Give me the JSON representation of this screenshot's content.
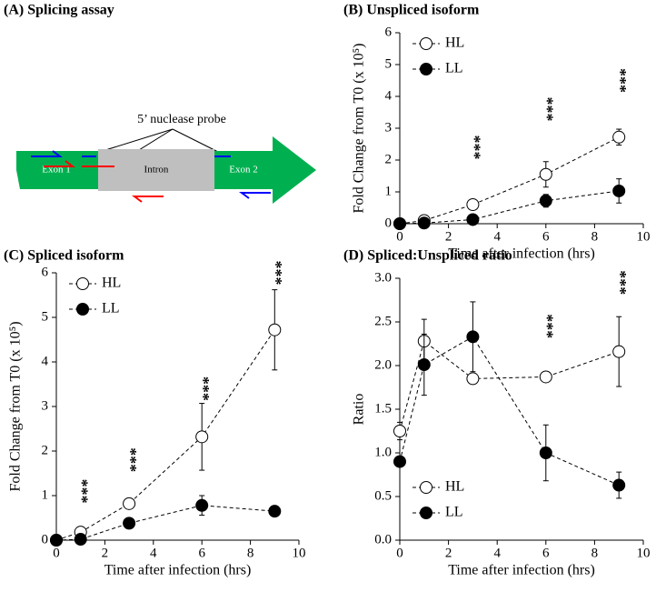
{
  "panel_a": {
    "title": "(A) Splicing assay",
    "probe_label": "5’ nuclease probe",
    "exon1": "Exon 1",
    "intron": "Intron",
    "exon2": "Exon 2"
  },
  "chart_data": [
    {
      "type": "line",
      "title": "(B) Unspliced isoform",
      "xlabel": "Time after infection (hrs)",
      "ylabel": "Fold Change from T0 (x 10⁵)",
      "x": [
        0,
        1,
        3,
        6,
        9
      ],
      "xlim": [
        0,
        10
      ],
      "xticks": [
        0,
        2,
        4,
        6,
        8,
        10
      ],
      "ylim": [
        0,
        6
      ],
      "yticks": [
        0,
        1,
        2,
        3,
        4,
        5,
        6
      ],
      "legend": "upper left",
      "series": [
        {
          "name": "HL",
          "color": "#ffffff",
          "values": [
            0,
            0.1,
            0.6,
            1.55,
            2.72
          ],
          "errors": [
            0.05,
            0.05,
            0.1,
            0.4,
            0.25
          ]
        },
        {
          "name": "LL",
          "color": "#000000",
          "values": [
            0,
            0.02,
            0.13,
            0.72,
            1.03
          ],
          "errors": [
            0,
            0,
            0.05,
            0.2,
            0.38
          ]
        }
      ],
      "annotations": [
        {
          "x": 3,
          "y": 2.4,
          "text": "***"
        },
        {
          "x": 6,
          "y": 3.6,
          "text": "***"
        },
        {
          "x": 9,
          "y": 4.5,
          "text": "***"
        }
      ]
    },
    {
      "type": "line",
      "title": "(C) Spliced isoform",
      "xlabel": "Time after infection (hrs)",
      "ylabel": "Fold Change from T0 (x 10⁵)",
      "x": [
        0,
        1,
        3,
        6,
        9
      ],
      "xlim": [
        0,
        10
      ],
      "xticks": [
        0,
        2,
        4,
        6,
        8,
        10
      ],
      "ylim": [
        0,
        6
      ],
      "yticks": [
        0,
        1,
        2,
        3,
        4,
        5,
        6
      ],
      "legend": "upper left",
      "series": [
        {
          "name": "HL",
          "color": "#ffffff",
          "values": [
            0,
            0.18,
            0.82,
            2.32,
            4.72
          ],
          "errors": [
            0.05,
            0.1,
            0.1,
            0.75,
            0.9
          ]
        },
        {
          "name": "LL",
          "color": "#000000",
          "values": [
            0,
            0.02,
            0.38,
            0.78,
            0.65
          ],
          "errors": [
            0,
            0,
            0.1,
            0.22,
            0.05
          ]
        }
      ],
      "annotations": [
        {
          "x": 1,
          "y": 1.1,
          "text": "***"
        },
        {
          "x": 3,
          "y": 1.8,
          "text": "***"
        },
        {
          "x": 6,
          "y": 3.4,
          "text": "***"
        },
        {
          "x": 9,
          "y": 6.0,
          "text": "***"
        }
      ]
    },
    {
      "type": "line",
      "title": "(D) Spliced:Unspliced ratio",
      "xlabel": "Time after infection (hrs)",
      "ylabel": "Ratio",
      "x": [
        0,
        1,
        3,
        6,
        9
      ],
      "xlim": [
        0,
        10
      ],
      "xticks": [
        0,
        2,
        4,
        6,
        8,
        10
      ],
      "ylim": [
        0,
        3
      ],
      "yticks": [
        {
          "value": 0,
          "label": "0.0"
        },
        {
          "value": 0.5,
          "label": "0.5"
        },
        {
          "value": 1,
          "label": "1.0"
        },
        {
          "value": 1.5,
          "label": "1.5"
        },
        {
          "value": 2,
          "label": "2.0"
        },
        {
          "value": 2.5,
          "label": "2.5"
        },
        {
          "value": 3,
          "label": "3.0"
        }
      ],
      "legend": "lower left",
      "series": [
        {
          "name": "HL",
          "color": "#ffffff",
          "values": [
            1.25,
            2.28,
            1.85,
            1.87,
            2.16
          ],
          "errors": [
            0.1,
            0.25,
            0.05,
            0.05,
            0.4
          ]
        },
        {
          "name": "LL",
          "color": "#000000",
          "values": [
            0.9,
            2.01,
            2.33,
            1.0,
            0.63
          ],
          "errors": [
            0.05,
            0.35,
            0.4,
            0.32,
            0.15
          ]
        }
      ],
      "annotations": [
        {
          "x": 6,
          "y": 2.45,
          "text": "***"
        },
        {
          "x": 9,
          "y": 2.95,
          "text": "***"
        }
      ]
    }
  ]
}
